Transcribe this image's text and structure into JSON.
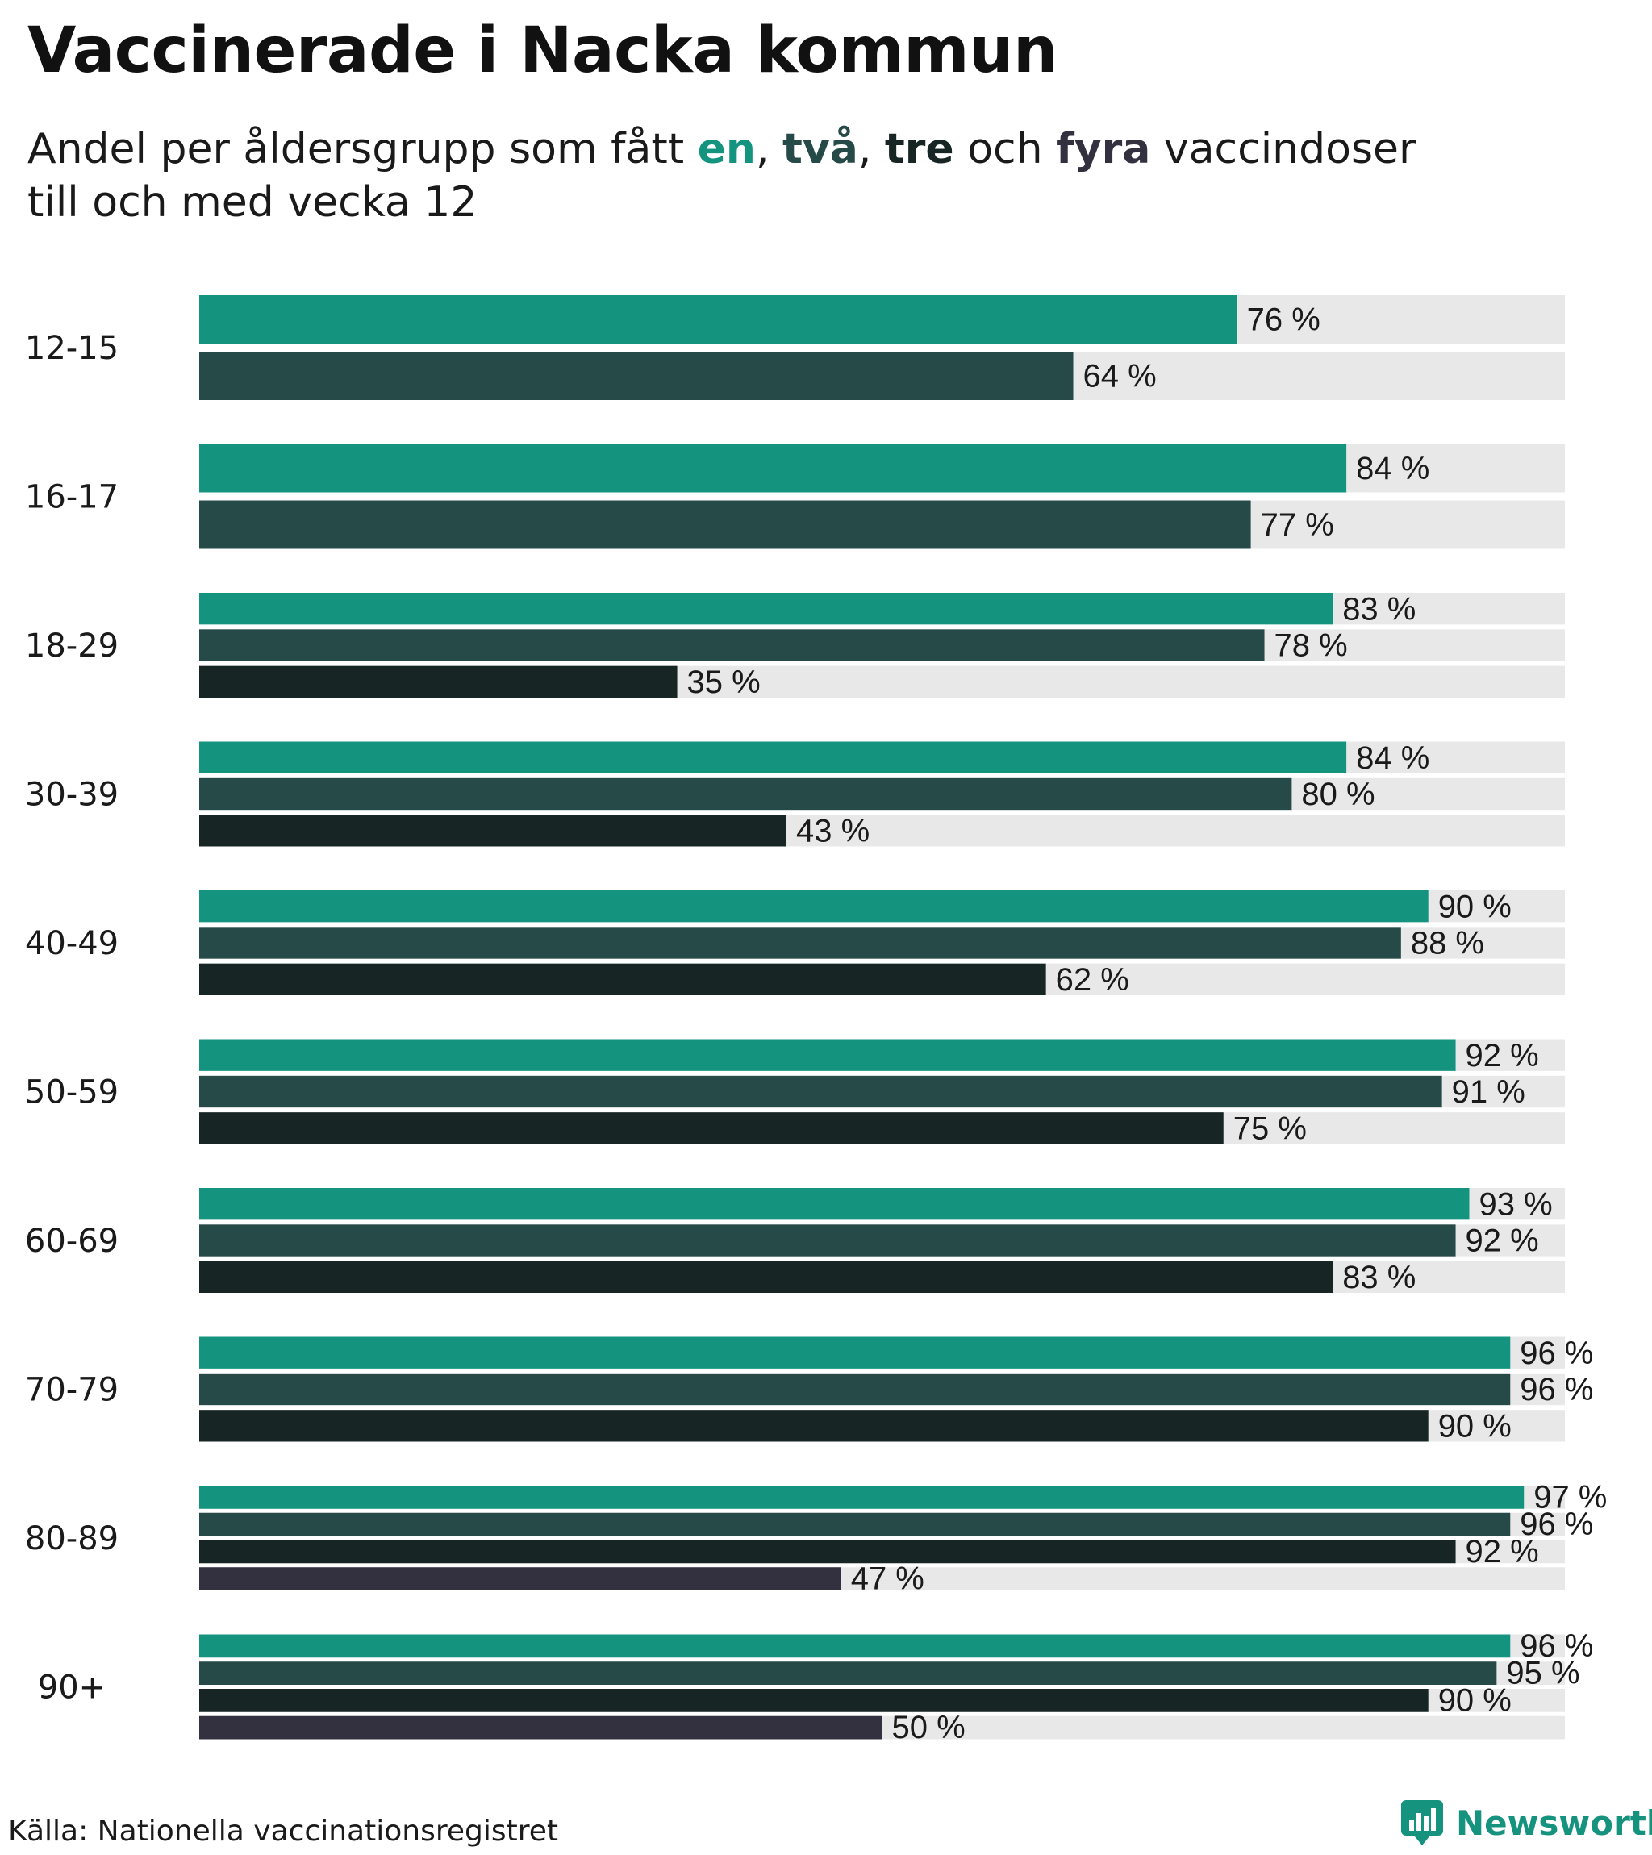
{
  "title": "Vaccinerade i Nacka kommun",
  "subtitle": {
    "part1": "Andel per åldersgrupp som fått ",
    "dose1": "en",
    "sep1": ", ",
    "dose2": "två",
    "sep2": ", ",
    "dose3": "tre",
    "and": " och ",
    "dose4": "fyra",
    "part2": " vaccindoser",
    "line2": "till och med vecka 12"
  },
  "colors": {
    "dose1": "#14937f",
    "dose2": "#264a47",
    "dose3": "#172624",
    "dose4": "#33303f",
    "track": "#e8e8e8"
  },
  "chart_data": {
    "type": "bar",
    "orientation": "horizontal",
    "title": "Vaccinerade i Nacka kommun",
    "value_suffix": " %",
    "xlim": [
      0,
      100
    ],
    "categories": [
      "12-15",
      "16-17",
      "18-29",
      "30-39",
      "40-49",
      "50-59",
      "60-69",
      "70-79",
      "80-89",
      "90+"
    ],
    "series": [
      {
        "name": "en",
        "values": [
          76,
          84,
          83,
          84,
          90,
          92,
          93,
          96,
          97,
          96
        ]
      },
      {
        "name": "två",
        "values": [
          64,
          77,
          78,
          80,
          88,
          91,
          92,
          96,
          96,
          95
        ]
      },
      {
        "name": "tre",
        "values": [
          null,
          null,
          35,
          43,
          62,
          75,
          83,
          90,
          92,
          90
        ]
      },
      {
        "name": "fyra",
        "values": [
          null,
          null,
          null,
          null,
          null,
          null,
          null,
          null,
          47,
          50
        ]
      }
    ]
  },
  "footer": {
    "source": "Källa: Nationella vaccinationsregistret",
    "brand": "Newsworthy"
  }
}
